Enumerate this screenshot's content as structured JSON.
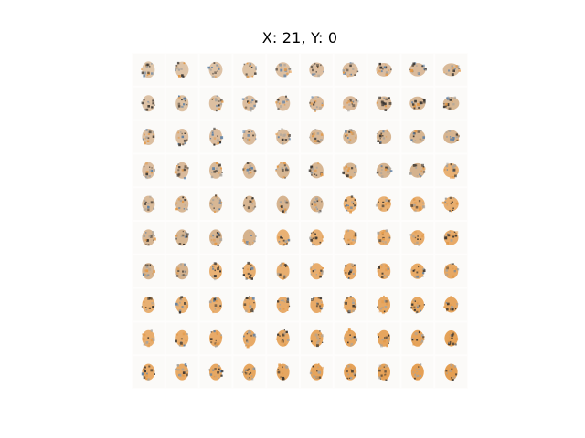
{
  "title": "X: 21, Y: 0",
  "image_grid": {
    "rows": 10,
    "cols": 10,
    "description_colors": {
      "background": "#fefdfc",
      "orange": "#e39a4a",
      "tan": "#c89a6a",
      "dark": "#3a3530",
      "blue": "#5b7fa6",
      "gray": "#a8a39c"
    }
  }
}
